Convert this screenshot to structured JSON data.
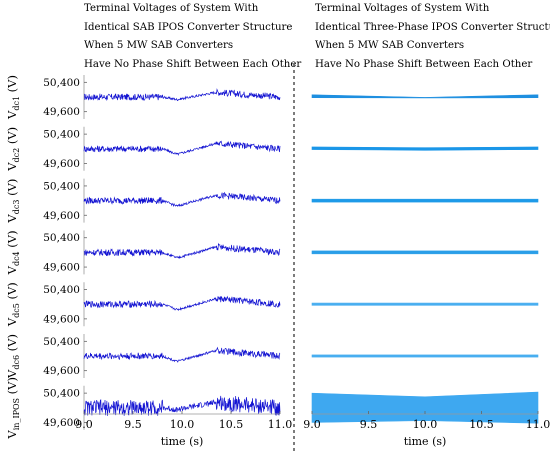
{
  "titles": {
    "left": [
      "Terminal Voltages of System With",
      "Identical SAB IPOS Converter Structure",
      "When 5 MW SAB Converters",
      "Have No Phase Shift Between Each Other"
    ],
    "right": [
      "Terminal Voltages of System With",
      "Identical Three-Phase IPOS Converter Structure",
      "When 5 MW SAB Converters",
      "Have No Phase Shift Between Each Other"
    ]
  },
  "chart_data": [
    {
      "type": "line",
      "panel": "left",
      "xlabel": "time (s)",
      "xlim": [
        9.0,
        11.0
      ],
      "xticks": [
        "9.0",
        "9.5",
        "10.0",
        "10.5",
        "11.0"
      ],
      "series_color": "#1414d2",
      "subplots": [
        {
          "ylabel_main": "V",
          "ylabel_sub": "dc1",
          "ylabel_unit": "(V)",
          "yticks": [
            "50,400",
            "49,600"
          ],
          "ylim": [
            49400,
            50600
          ],
          "x": [
            9.0,
            9.8,
            9.95,
            10.35,
            11.0
          ],
          "y": [
            50000,
            50000,
            49930,
            50130,
            50000
          ],
          "ripple": 90
        },
        {
          "ylabel_main": "V",
          "ylabel_sub": "dc2",
          "ylabel_unit": "(V)",
          "yticks": [
            "50,400",
            "49,600"
          ],
          "ylim": [
            49400,
            50600
          ],
          "x": [
            9.0,
            9.8,
            9.95,
            10.35,
            11.0
          ],
          "y": [
            50000,
            50000,
            49850,
            50150,
            50000
          ],
          "ripple": 90
        },
        {
          "ylabel_main": "V",
          "ylabel_sub": "dc3",
          "ylabel_unit": "(V)",
          "yticks": [
            "50,400",
            "49,600"
          ],
          "ylim": [
            49400,
            50600
          ],
          "x": [
            9.0,
            9.8,
            9.95,
            10.35,
            11.0
          ],
          "y": [
            50000,
            50000,
            49850,
            50150,
            50000
          ],
          "ripple": 90
        },
        {
          "ylabel_main": "V",
          "ylabel_sub": "dc4",
          "ylabel_unit": "(V)",
          "yticks": [
            "50,400",
            "49,600"
          ],
          "ylim": [
            49400,
            50600
          ],
          "x": [
            9.0,
            9.8,
            9.95,
            10.35,
            11.0
          ],
          "y": [
            50000,
            50000,
            49850,
            50150,
            50000
          ],
          "ripple": 90
        },
        {
          "ylabel_main": "V",
          "ylabel_sub": "dc5",
          "ylabel_unit": "(V)",
          "yticks": [
            "50,400",
            "49,600"
          ],
          "ylim": [
            49400,
            50600
          ],
          "x": [
            9.0,
            9.8,
            9.95,
            10.35,
            11.0
          ],
          "y": [
            50000,
            50000,
            49850,
            50150,
            50000
          ],
          "ripple": 90
        },
        {
          "ylabel_main": "V",
          "ylabel_sub": "dc6",
          "ylabel_unit": "(V)",
          "yticks": [
            "50,400",
            "49,600"
          ],
          "ylim": [
            49400,
            50600
          ],
          "x": [
            9.0,
            9.8,
            9.95,
            10.35,
            11.0
          ],
          "y": [
            50000,
            50000,
            49850,
            50150,
            50000
          ],
          "ripple": 90
        },
        {
          "ylabel_main": "V",
          "ylabel_sub": "in_IPOS",
          "ylabel_unit": "(V)",
          "yticks": [
            "50,400",
            "49,600"
          ],
          "ylim": [
            49400,
            50600
          ],
          "x": [
            9.0,
            9.8,
            9.95,
            10.35,
            11.0
          ],
          "y": [
            50000,
            50000,
            49950,
            50150,
            50000
          ],
          "ripple": 220
        }
      ]
    },
    {
      "type": "area",
      "panel": "right",
      "xlabel": "time (s)",
      "xlim": [
        9.0,
        11.0
      ],
      "xticks": [
        "9.0",
        "9.5",
        "10.0",
        "10.5",
        "11.0"
      ],
      "subplots": [
        {
          "color": "#1e8fe0",
          "ylim": [
            49400,
            50600
          ],
          "x": [
            9.0,
            10.0,
            11.0
          ],
          "upper": [
            50060,
            49990,
            50060
          ],
          "lower": [
            49980,
            49975,
            49980
          ]
        },
        {
          "color": "#1a96e8",
          "ylim": [
            49400,
            50600
          ],
          "x": [
            9.0,
            10.0,
            11.0
          ],
          "upper": [
            50050,
            50030,
            50050
          ],
          "lower": [
            49980,
            49960,
            49980
          ]
        },
        {
          "color": "#1e9ae8",
          "ylim": [
            49400,
            50600
          ],
          "x": [
            9.0,
            10.0,
            11.0
          ],
          "upper": [
            50040,
            50040,
            50040
          ],
          "lower": [
            49960,
            49960,
            49960
          ]
        },
        {
          "color": "#2a9ee8",
          "ylim": [
            49400,
            50600
          ],
          "x": [
            9.0,
            10.0,
            11.0
          ],
          "upper": [
            50040,
            50040,
            50040
          ],
          "lower": [
            49960,
            49960,
            49960
          ]
        },
        {
          "color": "#48aef0",
          "ylim": [
            49400,
            50600
          ],
          "x": [
            9.0,
            10.0,
            11.0
          ],
          "upper": [
            50030,
            50030,
            50030
          ],
          "lower": [
            49970,
            49970,
            49970
          ]
        },
        {
          "color": "#48aef0",
          "ylim": [
            49400,
            50600
          ],
          "x": [
            9.0,
            10.0,
            11.0
          ],
          "upper": [
            50030,
            50030,
            50030
          ],
          "lower": [
            49970,
            49970,
            49970
          ]
        },
        {
          "color": "#3ea8f0",
          "ylim": [
            49400,
            50600
          ],
          "x": [
            9.0,
            10.0,
            11.0
          ],
          "upper": [
            50400,
            50300,
            50430
          ],
          "lower": [
            49600,
            49650,
            49580
          ]
        }
      ]
    }
  ]
}
